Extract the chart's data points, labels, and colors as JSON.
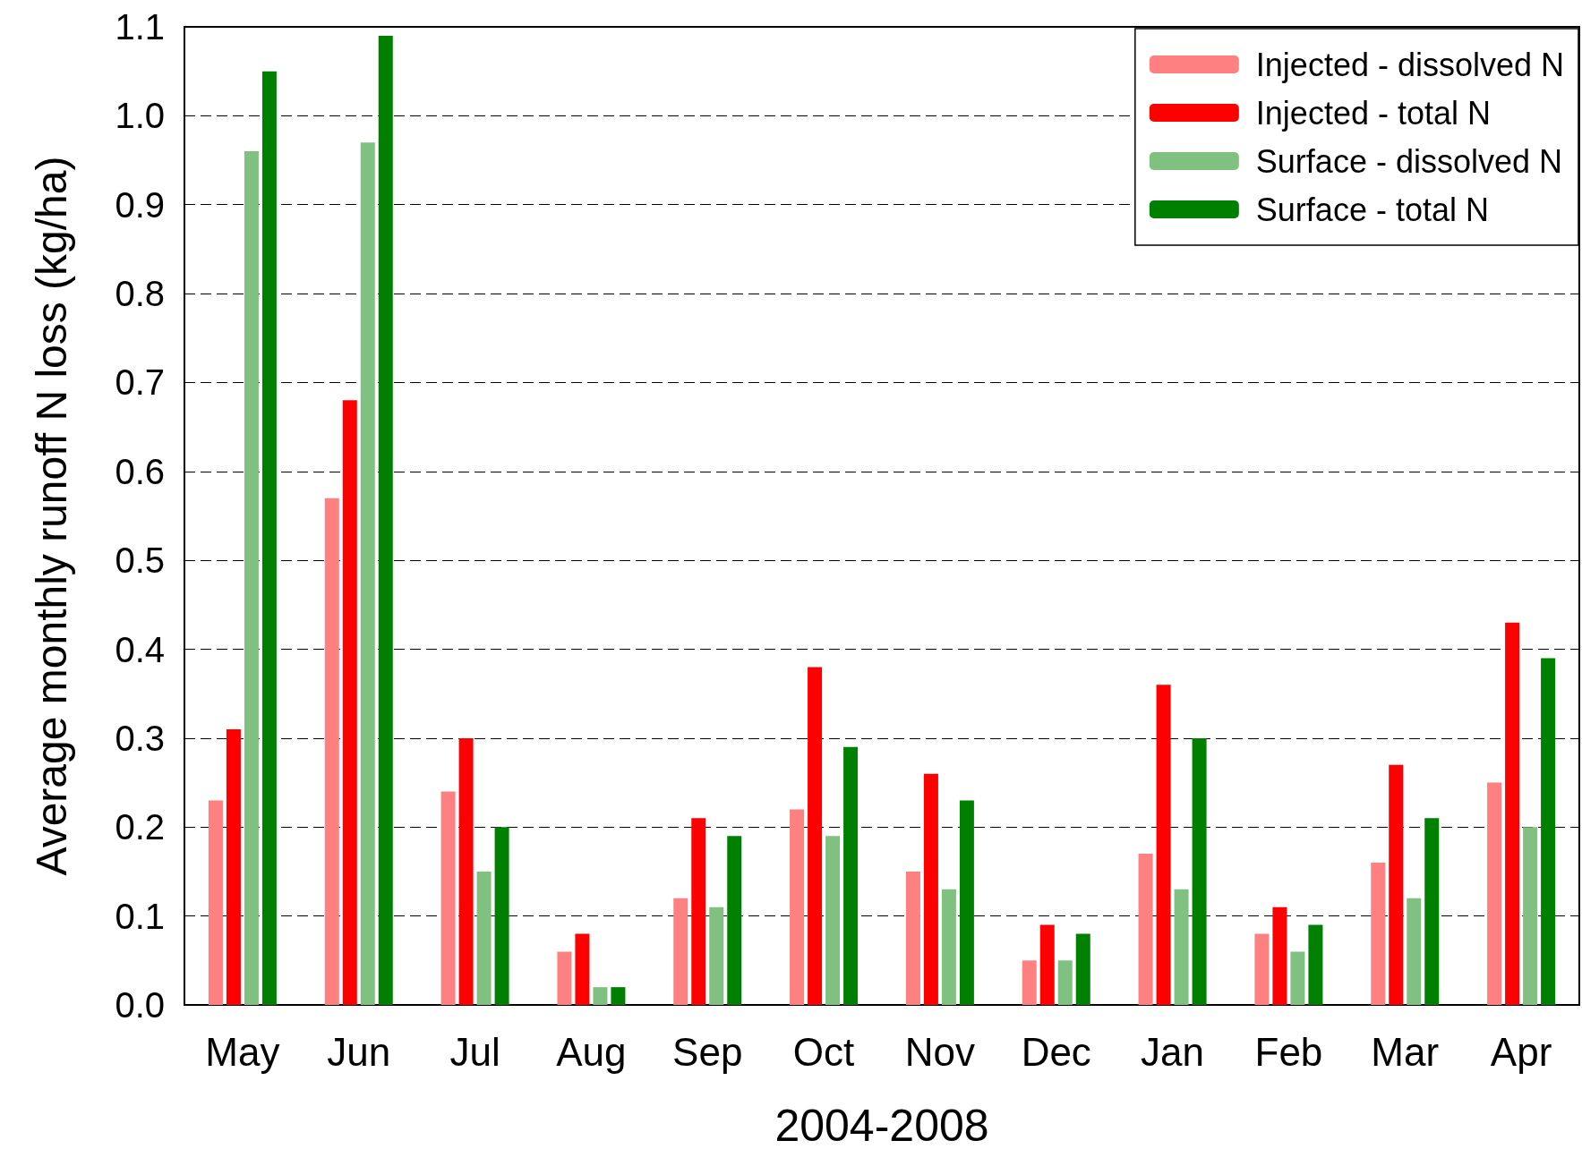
{
  "chart_data": {
    "type": "bar",
    "xlabel": "2004-2008",
    "ylabel": "Average monthly runoff N loss (kg/ha)",
    "categories": [
      "May",
      "Jun",
      "Jul",
      "Aug",
      "Sep",
      "Oct",
      "Nov",
      "Dec",
      "Jan",
      "Feb",
      "Mar",
      "Apr"
    ],
    "series": [
      {
        "name": "Injected - dissolved N",
        "color": "#ff8080",
        "values": [
          0.23,
          0.57,
          0.24,
          0.06,
          0.12,
          0.22,
          0.15,
          0.05,
          0.17,
          0.08,
          0.16,
          0.25
        ]
      },
      {
        "name": "Injected - total N",
        "color": "#ff0000",
        "values": [
          0.31,
          0.68,
          0.3,
          0.08,
          0.21,
          0.38,
          0.26,
          0.09,
          0.36,
          0.11,
          0.27,
          0.43
        ]
      },
      {
        "name": "Surface - dissolved N",
        "color": "#80c080",
        "values": [
          0.96,
          0.97,
          0.15,
          0.02,
          0.11,
          0.19,
          0.13,
          0.05,
          0.13,
          0.06,
          0.12,
          0.2
        ]
      },
      {
        "name": "Surface - total N",
        "color": "#008000",
        "values": [
          1.05,
          1.09,
          0.2,
          0.02,
          0.19,
          0.29,
          0.23,
          0.08,
          0.3,
          0.09,
          0.21,
          0.39
        ]
      }
    ],
    "ylim": [
      0,
      1.1
    ],
    "yticks": [
      {
        "value": 0,
        "label": "0.0"
      },
      0.1,
      0.2,
      0.3,
      0.4,
      0.5,
      0.6,
      0.7,
      0.8,
      0.9,
      {
        "value": 1,
        "label": "1.0"
      },
      1.1
    ],
    "grid": "y",
    "legend": "top right"
  }
}
